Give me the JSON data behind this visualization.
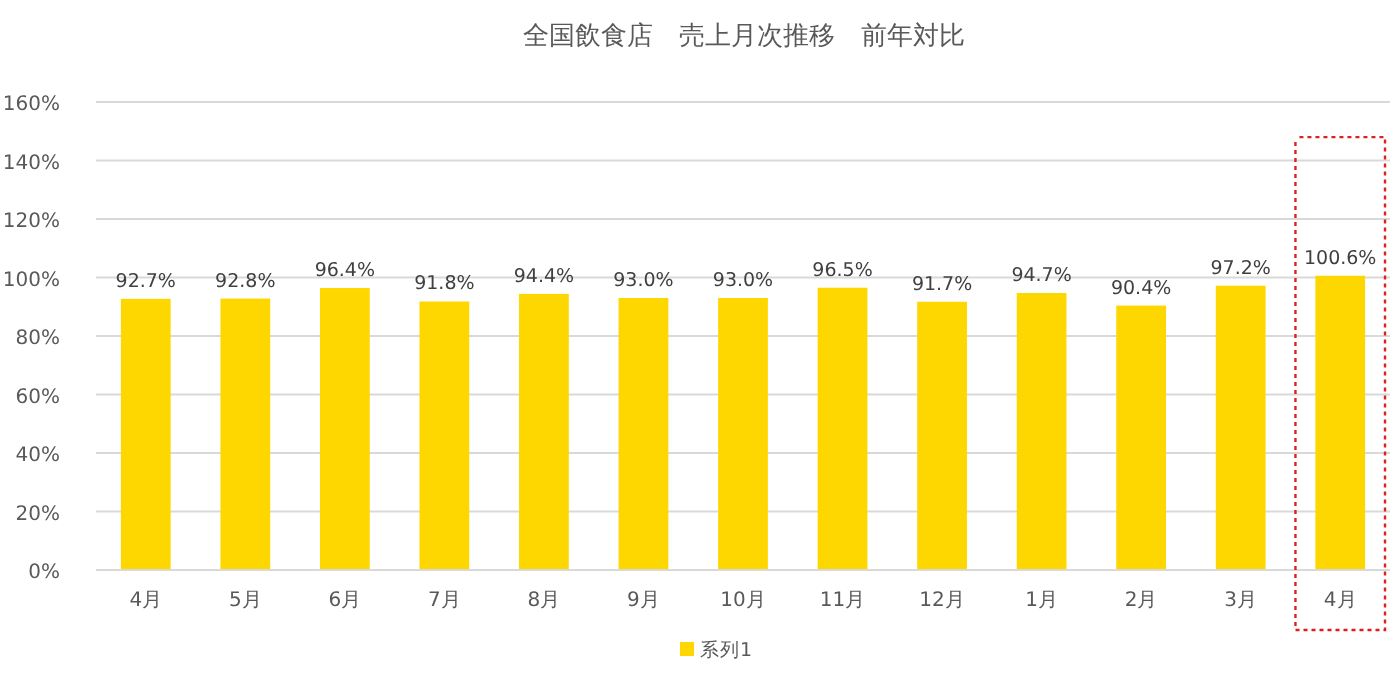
{
  "chart_data": {
    "type": "bar",
    "title": "全国飲食店　売上月次推移　前年対比",
    "categories": [
      "4月",
      "5月",
      "6月",
      "7月",
      "8月",
      "9月",
      "10月",
      "11月",
      "12月",
      "1月",
      "2月",
      "3月",
      "4月"
    ],
    "series": [
      {
        "name": "系列1",
        "color": "#ffd700",
        "values": [
          92.7,
          92.8,
          96.4,
          91.8,
          94.4,
          93.0,
          93.0,
          96.5,
          91.7,
          94.7,
          90.4,
          97.2,
          100.6
        ],
        "value_labels": [
          "92.7%",
          "92.8%",
          "96.4%",
          "91.8%",
          "94.4%",
          "93.0%",
          "93.0%",
          "96.5%",
          "91.7%",
          "94.7%",
          "90.4%",
          "97.2%",
          "100.6%"
        ]
      }
    ],
    "ylim": [
      0,
      160
    ],
    "yticks": [
      {
        "value": 0,
        "label": "0%"
      },
      {
        "value": 20,
        "label": "20%"
      },
      {
        "value": 40,
        "label": "40%"
      },
      {
        "value": 60,
        "label": "60%"
      },
      {
        "value": 80,
        "label": "80%"
      },
      {
        "value": 100,
        "label": "100%"
      },
      {
        "value": 120,
        "label": "120%"
      },
      {
        "value": 140,
        "label": "140%"
      },
      {
        "value": 160,
        "label": "160%"
      }
    ],
    "grid": "y",
    "legend": "bottom"
  }
}
